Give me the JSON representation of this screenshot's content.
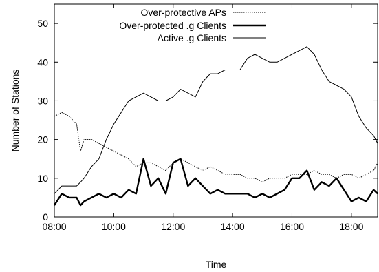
{
  "chart_data": {
    "type": "line",
    "xlabel": "Time",
    "ylabel": "Number of Stations",
    "xlim": [
      "08:00",
      "18:53"
    ],
    "ylim": [
      0,
      55
    ],
    "x_ticks": [
      "08:00",
      "10:00",
      "12:00",
      "14:00",
      "16:00",
      "18:00"
    ],
    "y_ticks": [
      0,
      10,
      20,
      30,
      40,
      50
    ],
    "grid": false,
    "legend_position": "top-center",
    "x": [
      "08:00",
      "08:15",
      "08:30",
      "08:45",
      "08:53",
      "09:00",
      "09:15",
      "09:30",
      "09:45",
      "10:00",
      "10:15",
      "10:30",
      "10:45",
      "11:00",
      "11:15",
      "11:30",
      "11:45",
      "12:00",
      "12:15",
      "12:30",
      "12:45",
      "13:00",
      "13:15",
      "13:30",
      "13:45",
      "14:00",
      "14:15",
      "14:30",
      "14:45",
      "15:00",
      "15:15",
      "15:30",
      "15:45",
      "16:00",
      "16:15",
      "16:30",
      "16:45",
      "17:00",
      "17:15",
      "17:30",
      "17:45",
      "18:00",
      "18:15",
      "18:30",
      "18:45",
      "18:53"
    ],
    "series": [
      {
        "name": "Over-protective APs",
        "style": "dotted",
        "values": [
          26,
          27,
          26,
          24,
          17,
          20,
          20,
          19,
          18,
          17,
          16,
          15,
          13,
          14,
          14,
          13,
          12,
          14,
          15,
          14,
          13,
          12,
          13,
          12,
          11,
          11,
          11,
          10,
          10,
          9,
          10,
          10,
          10,
          11,
          11,
          11,
          12,
          11,
          11,
          10,
          11,
          11,
          10,
          11,
          12,
          14
        ]
      },
      {
        "name": "Over-protected .g Clients",
        "style": "thick",
        "values": [
          3,
          6,
          5,
          5,
          3,
          4,
          5,
          6,
          5,
          6,
          5,
          7,
          6,
          15,
          8,
          10,
          6,
          14,
          15,
          8,
          10,
          8,
          6,
          7,
          6,
          6,
          6,
          6,
          5,
          6,
          5,
          6,
          7,
          10,
          10,
          12,
          7,
          9,
          8,
          10,
          7,
          4,
          5,
          4,
          7,
          6
        ]
      },
      {
        "name": "Active .g Clients",
        "style": "solid",
        "values": [
          6,
          8,
          8,
          8,
          9,
          10,
          13,
          15,
          20,
          24,
          27,
          30,
          31,
          32,
          31,
          30,
          30,
          31,
          33,
          32,
          31,
          35,
          37,
          37,
          38,
          38,
          38,
          41,
          42,
          41,
          40,
          40,
          41,
          42,
          43,
          44,
          42,
          38,
          35,
          34,
          33,
          31,
          26,
          23,
          21,
          19
        ]
      }
    ]
  }
}
